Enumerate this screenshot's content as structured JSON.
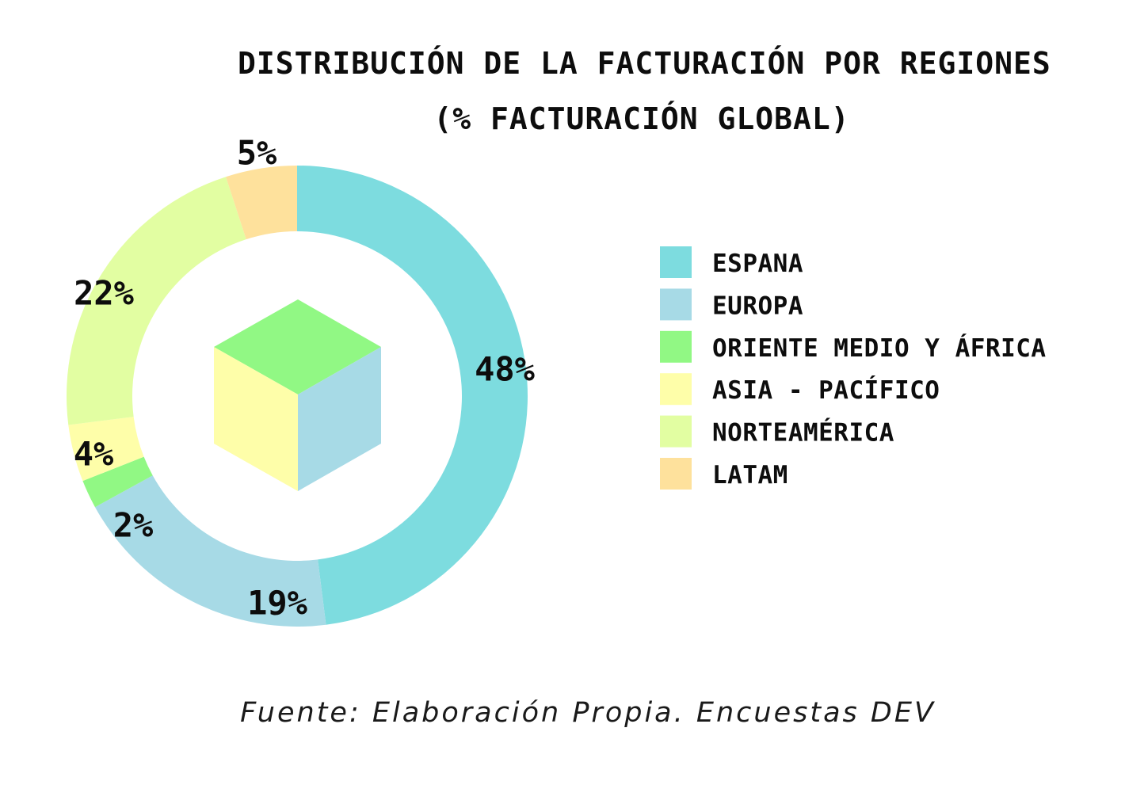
{
  "title_line1": "DISTRIBUCIÓN DE LA FACTURACIÓN POR REGIONES",
  "title_line2": "(% FACTURACIÓN GLOBAL)",
  "source": "Fuente: Elaboración Propia. Encuestas DEV",
  "chart_data": {
    "type": "pie",
    "variant": "donut",
    "categories": [
      "ESPANA",
      "EUROPA",
      "ORIENTE MEDIO Y ÁFRICA",
      "ASIA - PACÍFICO",
      "NORTEAMÉRICA",
      "LATAM"
    ],
    "values": [
      48,
      19,
      2,
      4,
      22,
      5
    ],
    "labels": [
      "48%",
      "19%",
      "2%",
      "4%",
      "22%",
      "5%"
    ],
    "colors": [
      "#7ddcdf",
      "#a7dae6",
      "#91f884",
      "#fefea9",
      "#e2fea2",
      "#fee19c"
    ],
    "legend_position": "right",
    "center_icon": "cube-icon"
  }
}
